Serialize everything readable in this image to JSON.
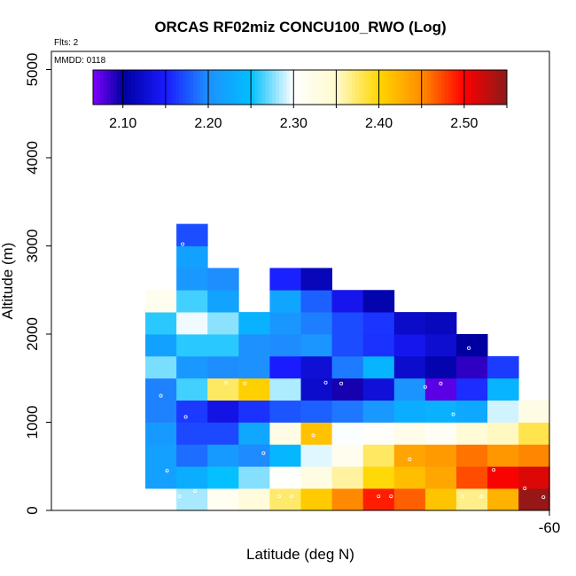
{
  "chart_data": {
    "type": "heatmap",
    "title": "ORCAS RF02miz CONCU100_RWO (Log)",
    "xlabel": "Latitude (deg N)",
    "ylabel": "Altitude (m)",
    "flights_note": "Flts: 2",
    "date_note": "MMDD: 0118",
    "x_tick_labels": [
      "-60"
    ],
    "y_tick_labels": [
      "0",
      "1000",
      "2000",
      "3000",
      "4000",
      "5000"
    ],
    "colorbar": {
      "range": [
        2.065,
        2.55
      ],
      "tick_values": [
        2.1,
        2.2,
        2.3,
        2.4,
        2.5
      ],
      "tick_labels": [
        "2.10",
        "2.20",
        "2.30",
        "2.40",
        "2.50"
      ],
      "divider_values": [
        2.1,
        2.15,
        2.2,
        2.25,
        2.3,
        2.35,
        2.4,
        2.45,
        2.5,
        2.55
      ]
    },
    "grid": {
      "column_count": 13,
      "row_bin_m": 250,
      "columns": [
        {
          "col": 0,
          "bottom": 1,
          "values": [
            2.217,
            2.217,
            2.211,
            2.194,
            2.194,
            2.274,
            2.218,
            2.258,
            2.318
          ]
        },
        {
          "col": 1,
          "bottom": 0,
          "values": [
            2.283,
            2.232,
            2.185,
            2.17,
            2.163,
            2.263,
            2.208,
            2.258,
            2.297,
            2.263,
            2.208,
            2.218,
            2.172
          ]
        },
        {
          "col": 2,
          "bottom": 0,
          "values": [
            2.314,
            2.251,
            2.211,
            2.17,
            2.137,
            2.376,
            2.199,
            2.258,
            2.277,
            2.22,
            2.199
          ]
        },
        {
          "col": 3,
          "bottom": 0,
          "values": [
            2.336,
            2.276,
            2.198,
            2.224,
            2.16,
            2.405,
            2.201,
            2.202,
            2.236
          ]
        },
        {
          "col": 4,
          "bottom": 0,
          "values": [
            2.374,
            2.303,
            2.241,
            2.326,
            2.175,
            2.284,
            2.151,
            2.198,
            2.207,
            2.223,
            2.153
          ]
        },
        {
          "col": 5,
          "bottom": 0,
          "values": [
            2.408,
            2.327,
            2.294,
            2.414,
            2.18,
            2.123,
            2.128,
            2.205,
            2.193,
            2.18,
            2.113
          ]
        },
        {
          "col": 6,
          "bottom": 0,
          "values": [
            2.451,
            2.361,
            2.318,
            2.299,
            2.19,
            2.094,
            2.191,
            2.171,
            2.171,
            2.14
          ]
        },
        {
          "col": 7,
          "bottom": 0,
          "values": [
            2.49,
            2.398,
            2.376,
            2.305,
            2.209,
            2.13,
            2.238,
            2.16,
            2.161,
            2.108
          ]
        },
        {
          "col": 8,
          "bottom": 0,
          "values": [
            2.466,
            2.416,
            2.434,
            2.322,
            2.231,
            2.204,
            2.123,
            2.141,
            2.121
          ]
        },
        {
          "col": 9,
          "bottom": 0,
          "values": [
            2.413,
            2.432,
            2.441,
            2.31,
            2.235,
            2.075,
            2.108,
            2.126,
            2.115
          ]
        },
        {
          "col": 10,
          "bottom": 0,
          "values": [
            2.366,
            2.473,
            2.459,
            2.341,
            2.227,
            2.158,
            2.087,
            2.1
          ]
        },
        {
          "col": 11,
          "bottom": 0,
          "values": [
            2.425,
            2.503,
            2.443,
            2.353,
            2.291,
            2.238,
            2.164
          ]
        },
        {
          "col": 12,
          "bottom": 0,
          "values": [
            2.545,
            2.515,
            2.452,
            2.381,
            2.325
          ]
        }
      ]
    },
    "markers": [
      {
        "lat_col": 1.2,
        "alt_m": 3020
      },
      {
        "lat_col": 0.5,
        "alt_m": 1300
      },
      {
        "lat_col": 1.3,
        "alt_m": 1060
      },
      {
        "lat_col": 0.7,
        "alt_m": 450
      },
      {
        "lat_col": 1.1,
        "alt_m": 160
      },
      {
        "lat_col": 1.6,
        "alt_m": 220
      },
      {
        "lat_col": 2.6,
        "alt_m": 1450
      },
      {
        "lat_col": 3.2,
        "alt_m": 1440
      },
      {
        "lat_col": 3.8,
        "alt_m": 650
      },
      {
        "lat_col": 4.3,
        "alt_m": 160
      },
      {
        "lat_col": 4.7,
        "alt_m": 160
      },
      {
        "lat_col": 5.4,
        "alt_m": 850
      },
      {
        "lat_col": 5.8,
        "alt_m": 1450
      },
      {
        "lat_col": 6.3,
        "alt_m": 1440
      },
      {
        "lat_col": 6.9,
        "alt_m": 870
      },
      {
        "lat_col": 7.5,
        "alt_m": 160
      },
      {
        "lat_col": 7.9,
        "alt_m": 160
      },
      {
        "lat_col": 8.5,
        "alt_m": 580
      },
      {
        "lat_col": 9.0,
        "alt_m": 1400
      },
      {
        "lat_col": 9.5,
        "alt_m": 1440
      },
      {
        "lat_col": 9.9,
        "alt_m": 1090
      },
      {
        "lat_col": 10.2,
        "alt_m": 160
      },
      {
        "lat_col": 10.4,
        "alt_m": 1840
      },
      {
        "lat_col": 10.8,
        "alt_m": 160
      },
      {
        "lat_col": 11.2,
        "alt_m": 460
      },
      {
        "lat_col": 12.2,
        "alt_m": 250
      },
      {
        "lat_col": 12.8,
        "alt_m": 150
      }
    ]
  }
}
